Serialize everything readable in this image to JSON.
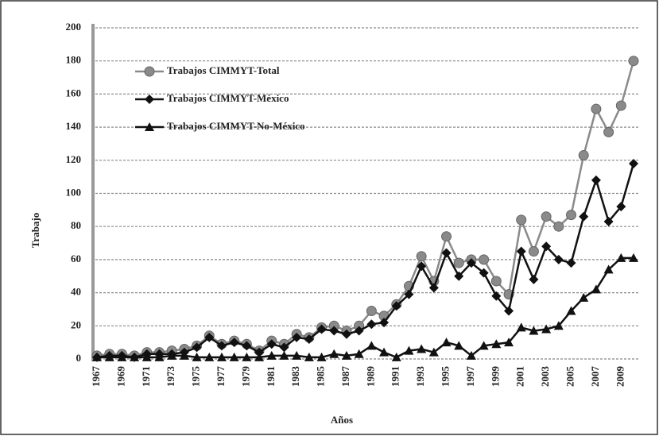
{
  "chart_data": {
    "type": "line",
    "ylabel": "Trabajo",
    "xlabel": "Años",
    "categories": [
      "1967",
      null,
      "1969",
      null,
      "1971",
      null,
      "1973",
      null,
      "1975",
      null,
      "1977",
      null,
      "1979",
      null,
      "1981",
      null,
      "1983",
      null,
      "1985",
      null,
      "1987",
      null,
      "1989",
      null,
      "1991",
      null,
      "1993",
      null,
      "1995",
      null,
      "1997",
      null,
      "1999",
      null,
      "2001",
      null,
      "2003",
      null,
      "2005",
      null,
      "2007",
      null,
      "2009",
      null
    ],
    "series": [
      {
        "name": "Trabajos CIMMYT-Total",
        "color": "#8a8a8a",
        "marker": "circle",
        "values": [
          2,
          3,
          3,
          2,
          4,
          4,
          5,
          6,
          8,
          14,
          9,
          11,
          9,
          5,
          11,
          9,
          15,
          13,
          19,
          20,
          17,
          20,
          29,
          26,
          33,
          44,
          62,
          47,
          74,
          58,
          60,
          60,
          47,
          39,
          84,
          65,
          86,
          80,
          87,
          123,
          151,
          137,
          153,
          180
        ]
      },
      {
        "name": "Trabajos CIMMYT-México",
        "color": "#111111",
        "marker": "diamond",
        "values": [
          1,
          2,
          2,
          1,
          3,
          3,
          3,
          4,
          7,
          13,
          8,
          10,
          8,
          4,
          9,
          7,
          13,
          12,
          18,
          17,
          15,
          17,
          21,
          22,
          32,
          39,
          56,
          43,
          64,
          50,
          58,
          52,
          38,
          29,
          65,
          48,
          68,
          60,
          58,
          86,
          108,
          83,
          92,
          118
        ]
      },
      {
        "name": "Trabajos CIMMYT-No-México",
        "color": "#111111",
        "marker": "triangle",
        "values": [
          1,
          1,
          1,
          1,
          1,
          1,
          2,
          2,
          1,
          1,
          1,
          1,
          1,
          1,
          2,
          2,
          2,
          1,
          1,
          3,
          2,
          3,
          8,
          4,
          1,
          5,
          6,
          4,
          10,
          8,
          2,
          8,
          9,
          10,
          19,
          17,
          18,
          20,
          29,
          37,
          42,
          54,
          61,
          61
        ]
      }
    ],
    "ylim": [
      0,
      200
    ],
    "yticks": [
      0,
      20,
      40,
      60,
      80,
      100,
      120,
      140,
      160,
      180,
      200
    ],
    "grid": true,
    "legend": "upper left"
  }
}
